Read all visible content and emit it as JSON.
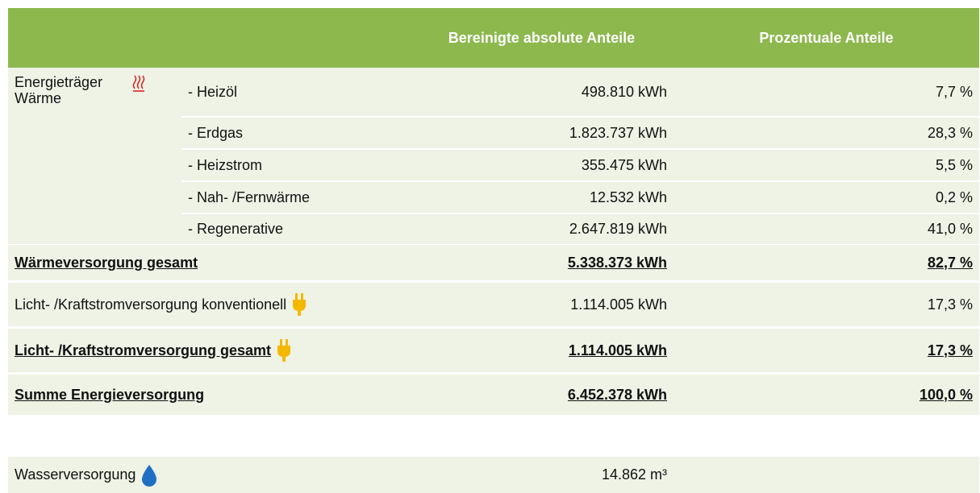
{
  "header": {
    "absolute": "Bereinigte absolute Anteile",
    "percent": "Prozentuale Anteile"
  },
  "heat": {
    "group": "Energieträger Wärme",
    "rows": [
      {
        "label": "- Heizöl",
        "absolute": "498.810 kWh",
        "percent": "7,7 %"
      },
      {
        "label": "- Erdgas",
        "absolute": "1.823.737 kWh",
        "percent": "28,3 %"
      },
      {
        "label": "- Heizstrom",
        "absolute": "355.475 kWh",
        "percent": "5,5 %"
      },
      {
        "label": "- Nah- /Fernwärme",
        "absolute": "12.532 kWh",
        "percent": "0,2 %"
      },
      {
        "label": "- Regenerative",
        "absolute": "2.647.819 kWh",
        "percent": "41,0 %"
      }
    ],
    "total": {
      "label": "Wärmeversorgung gesamt",
      "absolute": "5.338.373 kWh",
      "percent": "82,7 %"
    }
  },
  "power": {
    "row": {
      "label": "Licht- /Kraftstromversorgung konventionell",
      "absolute": "1.114.005 kWh",
      "percent": "17,3 %"
    },
    "total": {
      "label": "Licht- /Kraftstromversorgung gesamt",
      "absolute": "1.114.005 kWh",
      "percent": "17,3 %"
    }
  },
  "sum": {
    "label": "Summe Energieversorgung",
    "absolute": "6.452.378 kWh",
    "percent": "100,0 %"
  },
  "water": {
    "label": "Wasserversorgung",
    "absolute": "14.862 m³"
  }
}
